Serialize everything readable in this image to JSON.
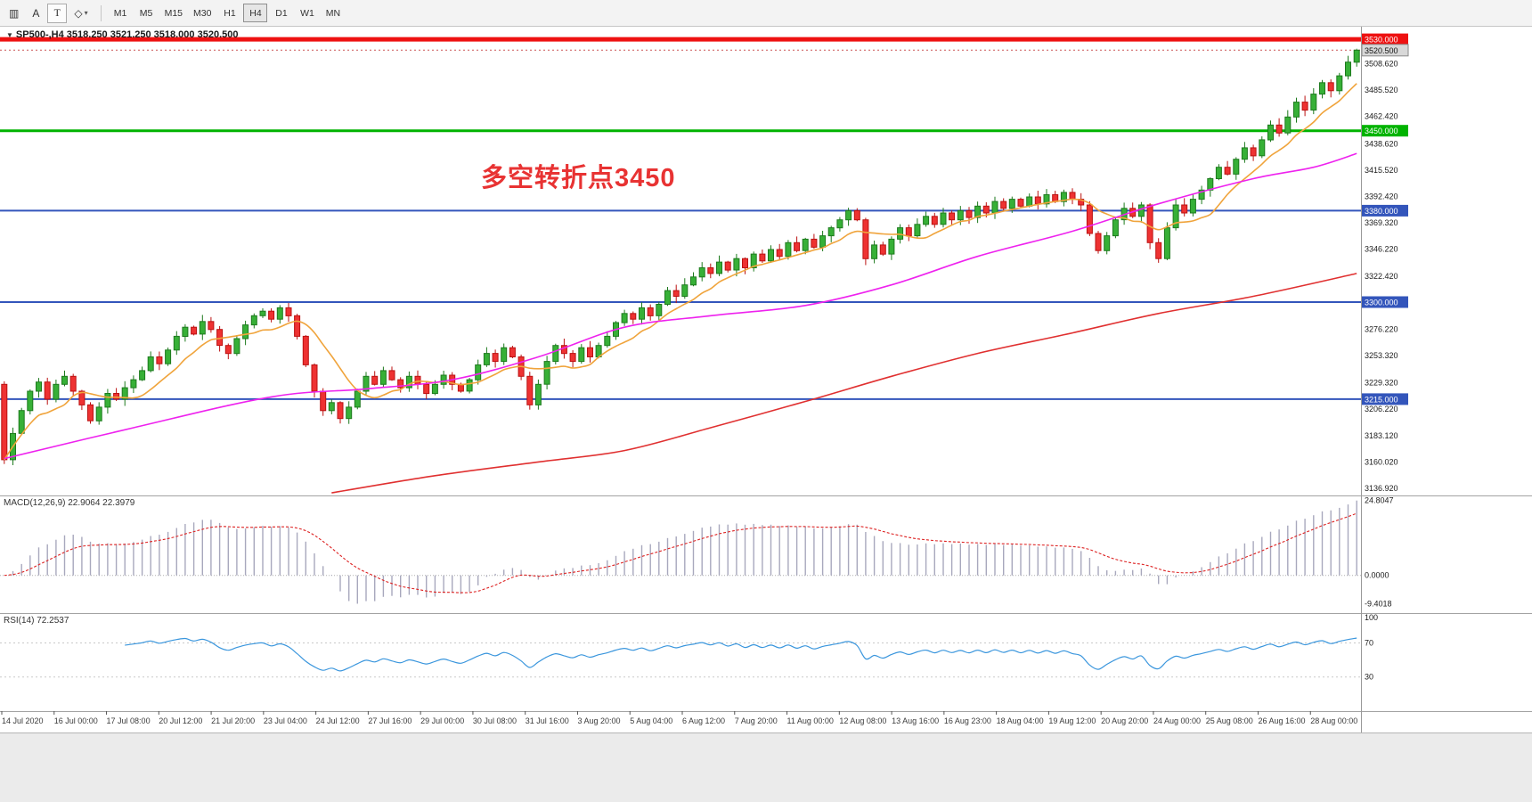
{
  "toolbar": {
    "left_icons": [
      {
        "name": "chart-lines-icon",
        "glyph": "▥"
      },
      {
        "name": "text-label-button",
        "label": "A"
      },
      {
        "name": "text-tool-button",
        "label": "T"
      },
      {
        "name": "shapes-button",
        "glyph": "◇",
        "dropdown": "▾"
      }
    ],
    "timeframes": [
      {
        "label": "M1"
      },
      {
        "label": "M5"
      },
      {
        "label": "M15"
      },
      {
        "label": "M30"
      },
      {
        "label": "H1"
      },
      {
        "label": "H4",
        "active": true
      },
      {
        "label": "D1"
      },
      {
        "label": "W1"
      },
      {
        "label": "MN"
      }
    ]
  },
  "main_chart": {
    "dropdown_glyph": "▼",
    "title": "SP500-,H4  3518.250 3521.250 3518.000 3520.500",
    "annotation": {
      "text": "多空转折点3450",
      "color": "#e83333"
    },
    "current_price": {
      "label": "3520.500"
    },
    "candle_up_color": {
      "fill": "#37b037",
      "border": "#1d7a1d"
    },
    "candle_down_color": {
      "fill": "#ee3232",
      "border": "#bb1111"
    },
    "price_ticks": [
      "3508.620",
      "3485.520",
      "3462.420",
      "3438.620",
      "3415.520",
      "3392.420",
      "3369.320",
      "3346.220",
      "3322.420",
      "3276.220",
      "3253.320",
      "3229.320",
      "3206.220",
      "3183.120",
      "3160.020",
      "3136.920"
    ],
    "hlines": [
      {
        "value": 3530.0,
        "label": "3530.000",
        "color": "#ee1111",
        "width": 5
      },
      {
        "value": 3450.0,
        "label": "3450.000",
        "color": "#00b300",
        "width": 3
      },
      {
        "value": 3380.0,
        "label": "3380.000",
        "color": "#3355bb",
        "width": 2
      },
      {
        "value": 3300.0,
        "label": "3300.000",
        "color": "#3355bb",
        "width": 2
      },
      {
        "value": 3215.0,
        "label": "3215.000",
        "color": "#3355bb",
        "width": 2
      }
    ]
  },
  "macd_panel": {
    "label": "MACD(12,26,9) 22.9064 22.3979",
    "ticks": [
      {
        "value": 24.8047,
        "label": "24.8047"
      },
      {
        "value": 0,
        "label": "0.0000"
      },
      {
        "value": -9.4018,
        "label": "-9.4018"
      }
    ]
  },
  "rsi_panel": {
    "label": "RSI(14) 72.2537",
    "ticks": [
      {
        "value": 100,
        "label": "100"
      },
      {
        "value": 70,
        "label": "70"
      },
      {
        "value": 30,
        "label": "30"
      }
    ],
    "levels": [
      70,
      30
    ]
  },
  "time_axis": [
    "14 Jul 2020",
    "16 Jul 00:00",
    "17 Jul 08:00",
    "20 Jul 12:00",
    "21 Jul 20:00",
    "23 Jul 04:00",
    "24 Jul 12:00",
    "27 Jul 16:00",
    "29 Jul 00:00",
    "30 Jul 08:00",
    "31 Jul 16:00",
    "3 Aug 20:00",
    "5 Aug 04:00",
    "6 Aug 12:00",
    "7 Aug 20:00",
    "11 Aug 00:00",
    "12 Aug 08:00",
    "13 Aug 16:00",
    "16 Aug 23:00",
    "18 Aug 04:00",
    "19 Aug 12:00",
    "20 Aug 20:00",
    "24 Aug 00:00",
    "25 Aug 08:00",
    "26 Aug 16:00",
    "28 Aug 00:00"
  ],
  "chart_data": {
    "type": "candlestick",
    "symbol": "SP500-",
    "timeframe": "H4",
    "title": "SP500-,H4",
    "ohlc_last": {
      "open": 3518.25,
      "high": 3521.25,
      "low": 3518.0,
      "close": 3520.5
    },
    "price_range": [
      3130.7,
      3541.0
    ],
    "open_first": 3228,
    "closes": [
      3162,
      3185,
      3205,
      3222,
      3230,
      3215,
      3228,
      3235,
      3222,
      3210,
      3196,
      3208,
      3220,
      3215,
      3225,
      3232,
      3240,
      3252,
      3246,
      3258,
      3270,
      3278,
      3272,
      3283,
      3276,
      3262,
      3255,
      3268,
      3280,
      3288,
      3292,
      3285,
      3295,
      3288,
      3270,
      3245,
      3222,
      3205,
      3212,
      3198,
      3208,
      3222,
      3235,
      3228,
      3240,
      3232,
      3225,
      3235,
      3228,
      3220,
      3228,
      3236,
      3228,
      3222,
      3232,
      3245,
      3255,
      3248,
      3260,
      3252,
      3235,
      3210,
      3228,
      3248,
      3262,
      3255,
      3248,
      3260,
      3252,
      3262,
      3270,
      3282,
      3290,
      3285,
      3295,
      3288,
      3298,
      3310,
      3305,
      3315,
      3322,
      3330,
      3325,
      3335,
      3328,
      3338,
      3330,
      3342,
      3336,
      3346,
      3340,
      3352,
      3345,
      3355,
      3348,
      3358,
      3365,
      3372,
      3380,
      3372,
      3338,
      3350,
      3342,
      3355,
      3365,
      3358,
      3368,
      3375,
      3368,
      3378,
      3372,
      3380,
      3374,
      3384,
      3378,
      3388,
      3382,
      3390,
      3384,
      3392,
      3386,
      3394,
      3388,
      3396,
      3390,
      3385,
      3360,
      3345,
      3358,
      3372,
      3382,
      3375,
      3385,
      3352,
      3338,
      3365,
      3385,
      3378,
      3390,
      3398,
      3408,
      3418,
      3412,
      3425,
      3435,
      3428,
      3442,
      3455,
      3448,
      3462,
      3475,
      3468,
      3482,
      3492,
      3485,
      3498,
      3510,
      3520.5
    ],
    "moving_averages": [
      {
        "name": "ma-fast-line",
        "color": "#f0a43c",
        "type": "sma",
        "period": 8
      },
      {
        "name": "ma-mid-line",
        "color": "#ee22ee",
        "points": [
          [
            0,
            3163
          ],
          [
            15,
            3190
          ],
          [
            31,
            3217
          ],
          [
            42,
            3224
          ],
          [
            52,
            3232
          ],
          [
            62,
            3252
          ],
          [
            72,
            3278
          ],
          [
            82,
            3288
          ],
          [
            93,
            3297
          ],
          [
            103,
            3315
          ],
          [
            113,
            3340
          ],
          [
            124,
            3362
          ],
          [
            134,
            3386
          ],
          [
            145,
            3408
          ],
          [
            152,
            3418
          ],
          [
            157,
            3430
          ]
        ]
      },
      {
        "name": "ma-slow-line",
        "color": "#e03030",
        "points": [
          [
            38,
            3133
          ],
          [
            50,
            3148
          ],
          [
            62,
            3160
          ],
          [
            72,
            3170
          ],
          [
            82,
            3190
          ],
          [
            93,
            3213
          ],
          [
            103,
            3235
          ],
          [
            113,
            3255
          ],
          [
            124,
            3273
          ],
          [
            134,
            3290
          ],
          [
            145,
            3305
          ],
          [
            157,
            3325
          ]
        ]
      }
    ],
    "indicators": {
      "macd": {
        "params": [
          12,
          26,
          9
        ],
        "value": 22.9064,
        "signal_value": 22.3979,
        "range": [
          -12.5,
          26.5
        ],
        "hist_color": "#a8a8bd",
        "signal_color": "#dd2222"
      },
      "rsi": {
        "period": 14,
        "value": 72.2537,
        "range": [
          -10,
          105
        ],
        "color": "#3a96dd"
      }
    }
  }
}
